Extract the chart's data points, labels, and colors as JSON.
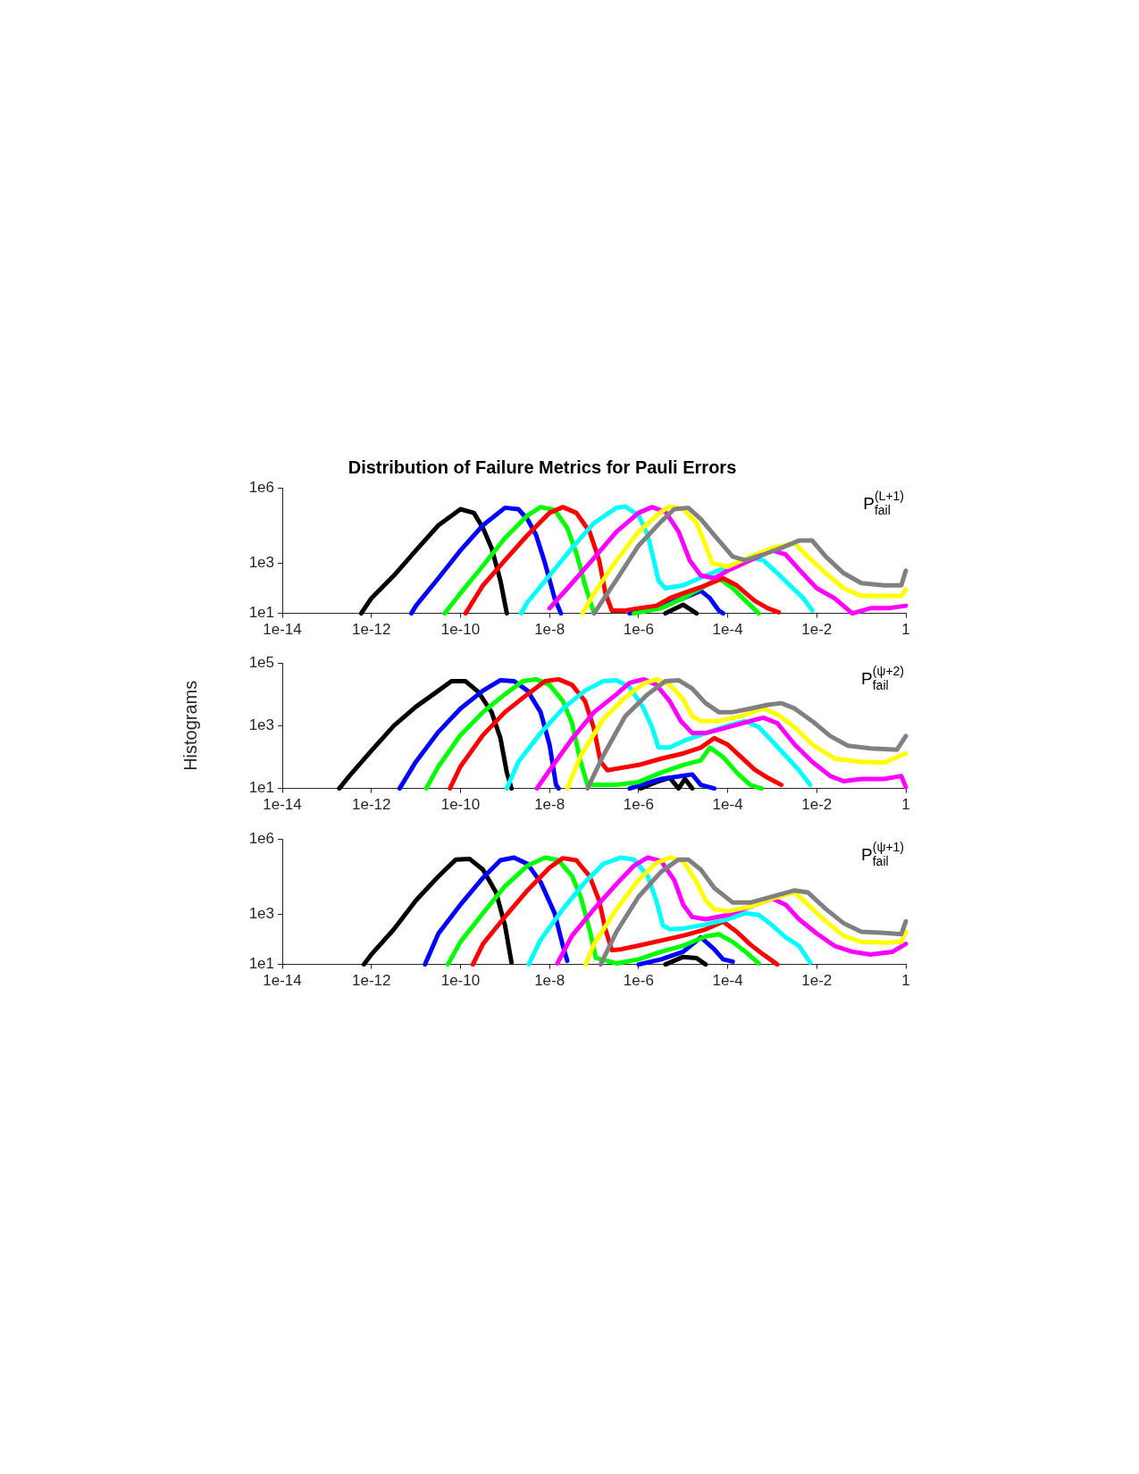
{
  "chart_data": [
    {
      "type": "line",
      "title": "Distribution of Failure Metrics for Pauli Errors",
      "annotations": [
        "P$_{fail}$$^{(L+1)}$"
      ],
      "log": "xy",
      "grid": false,
      "legend": false,
      "xlim": [
        1e-14,
        1
      ],
      "xticks": [
        {
          "value": 1e-14,
          "label": "1e-14"
        },
        {
          "value": 1e-12,
          "label": "1e-12"
        },
        {
          "value": 1e-10,
          "label": "1e-10"
        },
        {
          "value": 1e-08,
          "label": "1e-8"
        },
        {
          "value": 1e-06,
          "label": "1e-6"
        },
        {
          "value": 0.0001,
          "label": "1e-4"
        },
        {
          "value": 0.01,
          "label": "1e-2"
        },
        {
          "value": 1,
          "label": "1"
        }
      ],
      "ylim": [
        10,
        1000000
      ],
      "yticks": [
        {
          "value": 10,
          "label": "1e1"
        },
        {
          "value": 1000,
          "label": "1e3"
        },
        {
          "value": 1000000,
          "label": "1e6"
        }
      ],
      "series": [
        {
          "color": "#000000",
          "x": [
            5.9e-13,
            1e-12,
            3.2e-12,
            1e-11,
            3.2e-11,
            1e-10,
            2e-10,
            3.2e-10,
            5e-10,
            7.9e-10,
            1.1e-09,
            1e-07,
            4e-06,
            1e-05,
            2e-05
          ],
          "values": [
            10,
            40,
            320,
            3200,
            32000,
            140000,
            100000,
            25000,
            4000,
            200,
            10,
            null,
            10,
            22,
            10
          ]
        },
        {
          "color": "#0000ff",
          "x": [
            7.9e-12,
            1e-11,
            3.2e-11,
            1e-10,
            3.2e-10,
            1e-09,
            2e-09,
            3.2e-09,
            5e-09,
            7.9e-09,
            1.3e-08,
            1.8e-08,
            1e-07,
            6.3e-07,
            3.2e-06,
            1e-05,
            2.5e-05,
            4e-05,
            6.3e-05,
            7.9e-05
          ],
          "values": [
            10,
            20,
            250,
            3200,
            32000,
            160000,
            140000,
            56000,
            13000,
            1000,
            40,
            10,
            null,
            10,
            20,
            40,
            79,
            40,
            13,
            10
          ]
        },
        {
          "color": "#00ff00",
          "x": [
            4.4e-11,
            1e-10,
            3.2e-10,
            1e-09,
            3.2e-09,
            6.3e-09,
            1.3e-08,
            2.5e-08,
            4e-08,
            6.3e-08,
            1e-07,
            3.2e-07,
            7.9e-07,
            3.2e-06,
            1e-05,
            3.2e-05,
            6.3e-05,
            0.00013,
            0.00025,
            0.0005
          ],
          "values": [
            10,
            63,
            790,
            10000,
            79000,
            170000,
            130000,
            25000,
            2500,
            130,
            10,
            null,
            10,
            16,
            40,
            130,
            250,
            100,
            32,
            10
          ]
        },
        {
          "color": "#ff0000",
          "x": [
            1.3e-10,
            3.2e-10,
            1e-09,
            3.2e-09,
            1e-08,
            2e-08,
            4e-08,
            7.9e-08,
            1.3e-07,
            1.8e-07,
            2.5e-07,
            5e-07,
            1e-06,
            2.5e-06,
            5e-06,
            1e-05,
            3.2e-05,
            7.9e-05,
            0.00016,
            0.0004,
            0.00079,
            0.0014
          ],
          "values": [
            10,
            130,
            1300,
            13000,
            100000,
            170000,
            100000,
            18000,
            1300,
            63,
            13,
            13,
            16,
            20,
            40,
            63,
            130,
            250,
            130,
            32,
            16,
            11
          ]
        },
        {
          "color": "#00ffff",
          "x": [
            2.3e-09,
            3.2e-09,
            1e-08,
            3.2e-08,
            1e-07,
            3.2e-07,
            5e-07,
            1e-06,
            1.6e-06,
            2.2e-06,
            2.8e-06,
            4e-06,
            1e-05,
            3.2e-05,
            0.0001,
            0.00032,
            0.00063,
            0.0013,
            0.0025,
            0.005,
            0.0079
          ],
          "values": [
            10,
            28,
            320,
            4000,
            40000,
            160000,
            180000,
            79000,
            13000,
            1300,
            200,
            100,
            130,
            320,
            710,
            1600,
            1300,
            400,
            130,
            40,
            13
          ]
        },
        {
          "color": "#ff00ff",
          "x": [
            1e-08,
            3.2e-08,
            1e-07,
            3.2e-07,
            1e-06,
            2e-06,
            4e-06,
            7.9e-06,
            1.4e-05,
            2.5e-05,
            5e-05,
            0.0001,
            0.00032,
            0.001,
            0.002,
            0.004,
            0.01,
            0.025,
            0.063,
            0.16,
            0.4,
            1
          ],
          "values": [
            16,
            160,
            1600,
            18000,
            100000,
            170000,
            110000,
            18000,
            1300,
            320,
            250,
            500,
            1300,
            3200,
            2200,
            560,
            100,
            40,
            10,
            16,
            16,
            20
          ]
        },
        {
          "color": "#ffff00",
          "x": [
            5.5e-08,
            1e-07,
            3.2e-07,
            1e-06,
            3.2e-06,
            5e-06,
            1e-05,
            2e-05,
            3.2e-05,
            4.5e-05,
            0.0001,
            0.00032,
            0.001,
            0.0032,
            0.0063,
            0.016,
            0.04,
            0.1,
            0.32,
            0.79,
            1
          ],
          "values": [
            10,
            63,
            1300,
            18000,
            110000,
            180000,
            140000,
            40000,
            5000,
            1000,
            710,
            1800,
            4000,
            6300,
            1800,
            400,
            100,
            50,
            50,
            50,
            89
          ]
        },
        {
          "color": "#808080",
          "x": [
            1e-07,
            3.2e-07,
            1e-06,
            3.2e-06,
            6.3e-06,
            1.3e-05,
            2.5e-05,
            5e-05,
            0.00013,
            0.00025,
            0.00063,
            0.0016,
            0.004,
            0.0079,
            0.016,
            0.04,
            0.1,
            0.32,
            0.79,
            1
          ],
          "values": [
            10,
            220,
            5000,
            45000,
            140000,
            160000,
            56000,
            13000,
            1800,
            1300,
            2200,
            4000,
            7900,
            7900,
            1800,
            400,
            160,
            130,
            130,
            500
          ]
        }
      ]
    },
    {
      "type": "line",
      "ylabel": "Histograms",
      "annotations": [
        "P$_{fail}$$^{(ψ+2)}$"
      ],
      "log": "xy",
      "grid": false,
      "legend": false,
      "xlim": [
        1e-14,
        1
      ],
      "xticks": [
        {
          "value": 1e-14,
          "label": "1e-14"
        },
        {
          "value": 1e-12,
          "label": "1e-12"
        },
        {
          "value": 1e-10,
          "label": "1e-10"
        },
        {
          "value": 1e-08,
          "label": "1e-8"
        },
        {
          "value": 1e-06,
          "label": "1e-6"
        },
        {
          "value": 0.0001,
          "label": "1e-4"
        },
        {
          "value": 0.01,
          "label": "1e-2"
        },
        {
          "value": 1,
          "label": "1"
        }
      ],
      "ylim": [
        10,
        100000
      ],
      "yticks": [
        {
          "value": 10,
          "label": "1e1"
        },
        {
          "value": 1000,
          "label": "1e3"
        },
        {
          "value": 100000,
          "label": "1e5"
        }
      ],
      "series": [
        {
          "color": "#000000",
          "x": [
            1.9e-13,
            3.2e-13,
            1e-12,
            3.2e-12,
            1e-11,
            3.2e-11,
            6.3e-11,
            1.3e-10,
            2.5e-10,
            5e-10,
            7.9e-10,
            1.1e-09,
            1.4e-09,
            3.2e-08,
            1.1e-06,
            2.5e-06,
            5e-06,
            7.9e-06,
            1.1e-05,
            1.6e-05
          ],
          "values": [
            10,
            25,
            160,
            1000,
            4000,
            13000,
            26000,
            26000,
            12000,
            2700,
            400,
            32,
            10,
            null,
            10,
            16,
            22,
            10,
            20,
            10
          ]
        },
        {
          "color": "#0000ff",
          "x": [
            4.3e-12,
            1e-11,
            3.2e-11,
            1e-10,
            3.2e-10,
            7.9e-10,
            1.6e-09,
            3.2e-09,
            6.3e-09,
            1e-08,
            1.4e-08,
            1.6e-08,
            1e-07,
            6.3e-07,
            3.2e-06,
            1.6e-05,
            2.5e-05,
            5e-05
          ],
          "values": [
            10,
            71,
            630,
            3500,
            13000,
            28000,
            26000,
            13000,
            2700,
            250,
            13,
            10,
            null,
            10,
            20,
            28,
            13,
            10
          ]
        },
        {
          "color": "#00ff00",
          "x": [
            1.7e-11,
            3.2e-11,
            1e-10,
            3.2e-10,
            1e-09,
            2.5e-09,
            5e-09,
            1e-08,
            2e-08,
            3.2e-08,
            5e-08,
            7.1e-08,
            1.3e-07,
            3.2e-07,
            1e-06,
            3.2e-06,
            1e-05,
            2.5e-05,
            4e-05,
            7.9e-05,
            0.00016,
            0.00032,
            0.00058
          ],
          "values": [
            10,
            50,
            500,
            2700,
            10000,
            26000,
            30000,
            20000,
            6000,
            1200,
            71,
            13,
            13,
            13,
            16,
            32,
            56,
            79,
            200,
            100,
            32,
            13,
            10
          ]
        },
        {
          "color": "#ff0000",
          "x": [
            5.8e-11,
            1e-10,
            3.2e-10,
            1e-09,
            3.2e-09,
            7.9e-09,
            1.6e-08,
            3.2e-08,
            6.3e-08,
            1e-07,
            1.4e-07,
            2e-07,
            4e-07,
            1e-06,
            3.2e-06,
            1e-05,
            2.5e-05,
            5e-05,
            0.0001,
            0.0002,
            0.0004,
            0.00079,
            0.0016
          ],
          "values": [
            10,
            50,
            500,
            2700,
            10000,
            26000,
            30000,
            20000,
            6000,
            790,
            71,
            38,
            45,
            56,
            89,
            130,
            200,
            400,
            250,
            100,
            40,
            22,
            13
          ]
        },
        {
          "color": "#00ffff",
          "x": [
            1.1e-09,
            2e-09,
            6.3e-09,
            2e-08,
            6.3e-08,
            1.6e-07,
            3.2e-07,
            6.3e-07,
            1.3e-06,
            2e-06,
            2.8e-06,
            5e-06,
            1e-05,
            3.2e-05,
            0.0001,
            0.00025,
            0.0005,
            0.001,
            0.002,
            0.004,
            0.0071
          ],
          "values": [
            10,
            71,
            580,
            3500,
            13000,
            26000,
            28000,
            17000,
            3500,
            890,
            200,
            200,
            320,
            580,
            1000,
            1400,
            890,
            320,
            110,
            38,
            13
          ]
        },
        {
          "color": "#ff00ff",
          "x": [
            5.2e-09,
            1e-08,
            3.2e-08,
            1e-07,
            3.2e-07,
            6.3e-07,
            1.3e-06,
            2.5e-06,
            5e-06,
            8.9e-06,
            1.6e-05,
            3.2e-05,
            0.0001,
            0.00032,
            0.00063,
            0.0013,
            0.0032,
            0.0079,
            0.02,
            0.04,
            0.1,
            0.32,
            0.79,
            1
          ],
          "values": [
            10,
            38,
            380,
            2700,
            10000,
            23000,
            30000,
            20000,
            6000,
            1400,
            580,
            580,
            890,
            1400,
            1800,
            1200,
            250,
            71,
            25,
            17,
            20,
            20,
            25,
            11
          ]
        },
        {
          "color": "#ffff00",
          "x": [
            2.5e-08,
            5e-08,
            1.6e-07,
            5e-07,
            1.3e-06,
            2.5e-06,
            5e-06,
            1e-05,
            1.6e-05,
            2.5e-05,
            6.3e-05,
            0.0002,
            0.00063,
            0.0013,
            0.0032,
            0.0079,
            0.025,
            0.1,
            0.32,
            1
          ],
          "values": [
            10,
            110,
            1600,
            7900,
            22000,
            30000,
            20000,
            6900,
            2000,
            1400,
            1400,
            2000,
            3500,
            2300,
            890,
            250,
            89,
            71,
            66,
            130
          ]
        },
        {
          "color": "#808080",
          "x": [
            7.1e-08,
            1.6e-07,
            5e-07,
            1.6e-06,
            4e-06,
            7.9e-06,
            1.6e-05,
            3.2e-05,
            6.3e-05,
            0.00013,
            0.00032,
            0.00079,
            0.0016,
            0.0032,
            0.0079,
            0.02,
            0.05,
            0.16,
            0.63,
            1
          ],
          "values": [
            10,
            110,
            2000,
            10000,
            26000,
            28000,
            15000,
            5200,
            2700,
            2700,
            3500,
            4600,
            5200,
            3500,
            1400,
            470,
            230,
            190,
            170,
            470
          ]
        }
      ]
    },
    {
      "type": "line",
      "annotations": [
        "P$_{fail}$$^{(ψ+1)}$"
      ],
      "log": "xy",
      "grid": false,
      "legend": false,
      "xlim": [
        1e-14,
        1
      ],
      "xticks": [
        {
          "value": 1e-14,
          "label": "1e-14"
        },
        {
          "value": 1e-12,
          "label": "1e-12"
        },
        {
          "value": 1e-10,
          "label": "1e-10"
        },
        {
          "value": 1e-08,
          "label": "1e-8"
        },
        {
          "value": 1e-06,
          "label": "1e-6"
        },
        {
          "value": 0.0001,
          "label": "1e-4"
        },
        {
          "value": 0.01,
          "label": "1e-2"
        },
        {
          "value": 1,
          "label": "1"
        }
      ],
      "ylim": [
        10,
        1000000
      ],
      "yticks": [
        {
          "value": 10,
          "label": "1e1"
        },
        {
          "value": 1000,
          "label": "1e3"
        },
        {
          "value": 1000000,
          "label": "1e6"
        }
      ],
      "series": [
        {
          "color": "#000000",
          "x": [
            6.8e-13,
            1e-12,
            3.2e-12,
            1e-11,
            3.2e-11,
            7.9e-11,
            1.6e-10,
            3.2e-10,
            6.3e-10,
            1e-09,
            1.4e-09,
            1e-07,
            4e-06,
            1e-05,
            2e-05,
            3.2e-05
          ],
          "values": [
            10,
            25,
            250,
            3500,
            32000,
            150000,
            160000,
            59000,
            7400,
            360,
            12,
            null,
            10,
            20,
            18,
            10
          ]
        },
        {
          "color": "#0000ff",
          "x": [
            1.6e-11,
            3.2e-11,
            1e-10,
            3.2e-10,
            7.9e-10,
            1.6e-09,
            3.2e-09,
            6.3e-09,
            1.3e-08,
            2e-08,
            2.5e-08,
            1e-07,
            1e-06,
            3.2e-06,
            1e-05,
            2.5e-05,
            5e-05,
            7.9e-05,
            0.00013
          ],
          "values": [
            10,
            170,
            2400,
            28000,
            140000,
            180000,
            100000,
            19000,
            1100,
            55,
            14,
            null,
            10,
            16,
            32,
            120,
            40,
            16,
            13
          ]
        },
        {
          "color": "#00ff00",
          "x": [
            5.2e-11,
            1e-10,
            3.2e-10,
            1e-09,
            3.2e-09,
            7.9e-09,
            1.6e-08,
            3.2e-08,
            5e-08,
            7.9e-08,
            1.1e-07,
            3.2e-07,
            1e-06,
            3.2e-06,
            1e-05,
            3.2e-05,
            6.3e-05,
            0.00013,
            0.00025,
            0.0005
          ],
          "values": [
            10,
            79,
            1100,
            13000,
            85000,
            180000,
            140000,
            33000,
            5000,
            250,
            18,
            11,
            16,
            32,
            56,
            130,
            160,
            79,
            32,
            11
          ]
        },
        {
          "color": "#ff0000",
          "x": [
            1.9e-10,
            3.2e-10,
            1e-09,
            3.2e-09,
            1e-08,
            2e-08,
            4e-08,
            7.9e-08,
            1.3e-07,
            1.8e-07,
            2.5e-07,
            4e-07,
            1e-06,
            3.2e-06,
            1e-05,
            3.2e-05,
            7.9e-05,
            0.00016,
            0.00032,
            0.00063,
            0.0013
          ],
          "values": [
            10,
            66,
            790,
            8900,
            71000,
            170000,
            140000,
            33000,
            3500,
            250,
            37,
            40,
            56,
            89,
            140,
            250,
            500,
            200,
            63,
            25,
            10
          ]
        },
        {
          "color": "#00ffff",
          "x": [
            3.4e-09,
            6.3e-09,
            2e-08,
            6.3e-08,
            1.6e-07,
            4e-07,
            7.9e-07,
            1.6e-06,
            2.5e-06,
            3.5e-06,
            5e-06,
            1e-05,
            3.2e-05,
            0.0001,
            0.00025,
            0.0005,
            0.001,
            0.002,
            0.004,
            0.0071
          ],
          "values": [
            10,
            95,
            1600,
            19000,
            100000,
            180000,
            150000,
            33000,
            3500,
            360,
            250,
            270,
            390,
            630,
            1100,
            930,
            360,
            120,
            55,
            12
          ]
        },
        {
          "color": "#ff00ff",
          "x": [
            1.5e-08,
            3.2e-08,
            1e-07,
            3.2e-07,
            7.9e-07,
            1.6e-06,
            3.2e-06,
            6.3e-06,
            1e-05,
            1.6e-05,
            3.2e-05,
            0.0001,
            0.00032,
            0.001,
            0.002,
            0.004,
            0.01,
            0.025,
            0.063,
            0.16,
            0.5,
            1
          ],
          "values": [
            11,
            140,
            1600,
            16000,
            85000,
            180000,
            130000,
            23000,
            2400,
            780,
            630,
            930,
            2000,
            4200,
            2400,
            630,
            170,
            55,
            32,
            25,
            32,
            66
          ]
        },
        {
          "color": "#ffff00",
          "x": [
            6.5e-08,
            1e-07,
            3.2e-07,
            1e-06,
            2.5e-06,
            5e-06,
            1e-05,
            2e-05,
            3.2e-05,
            5e-05,
            0.0001,
            0.00032,
            0.001,
            0.0032,
            0.0063,
            0.016,
            0.04,
            0.1,
            0.32,
            0.79,
            1
          ],
          "values": [
            10,
            66,
            1600,
            23000,
            110000,
            180000,
            130000,
            19000,
            3500,
            1600,
            1300,
            2000,
            4200,
            7400,
            2400,
            520,
            140,
            79,
            74,
            79,
            200
          ]
        },
        {
          "color": "#808080",
          "x": [
            1.4e-07,
            3.2e-07,
            1e-06,
            3.2e-06,
            7.9e-06,
            1.3e-05,
            2.5e-05,
            5e-05,
            0.00013,
            0.00032,
            0.001,
            0.0032,
            0.0063,
            0.016,
            0.04,
            0.1,
            0.32,
            0.79,
            1
          ],
          "values": [
            10,
            200,
            5000,
            49000,
            150000,
            150000,
            59000,
            11000,
            2900,
            2900,
            5000,
            8900,
            7400,
            1600,
            440,
            200,
            180,
            160,
            520
          ]
        }
      ]
    }
  ]
}
